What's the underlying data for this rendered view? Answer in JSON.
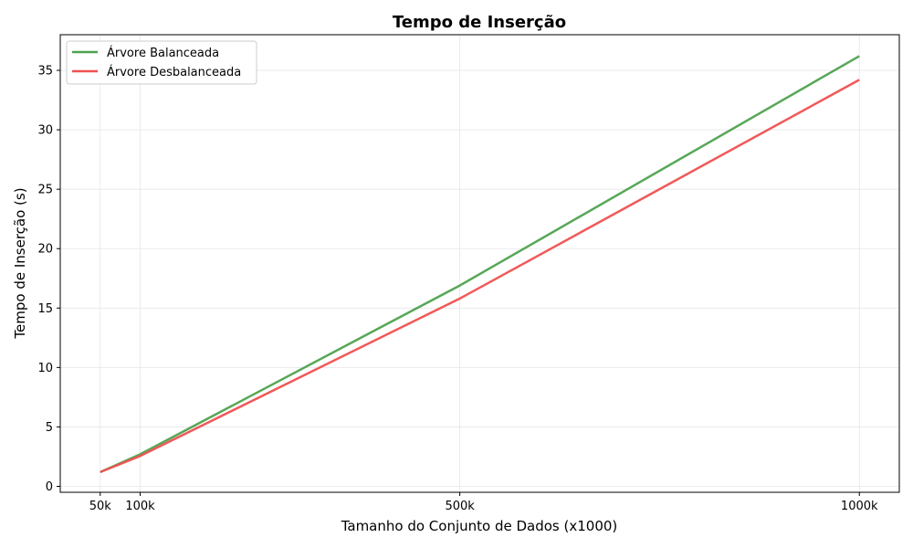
{
  "chart_data": {
    "type": "line",
    "title": "Tempo de Inserção",
    "xlabel": "Tamanho do Conjunto de Dados (x1000)",
    "ylabel": "Tempo de Inserção (s)",
    "x": [
      50,
      100,
      500,
      1000
    ],
    "x_tick_labels": [
      "50k",
      "100k",
      "500k",
      "1000k"
    ],
    "xlim": [
      0,
      1050
    ],
    "ylim": [
      -0.5,
      38
    ],
    "y_ticks": [
      0,
      5,
      10,
      15,
      20,
      25,
      30,
      35
    ],
    "grid": true,
    "legend_position": "top-left",
    "series": [
      {
        "name": "Árvore Balanceada",
        "color": "#4ea24e",
        "values": [
          1.2,
          2.7,
          16.9,
          36.2
        ]
      },
      {
        "name": "Árvore Desbalanceada",
        "color": "#f05050",
        "values": [
          1.2,
          2.55,
          15.8,
          34.2
        ]
      }
    ]
  }
}
